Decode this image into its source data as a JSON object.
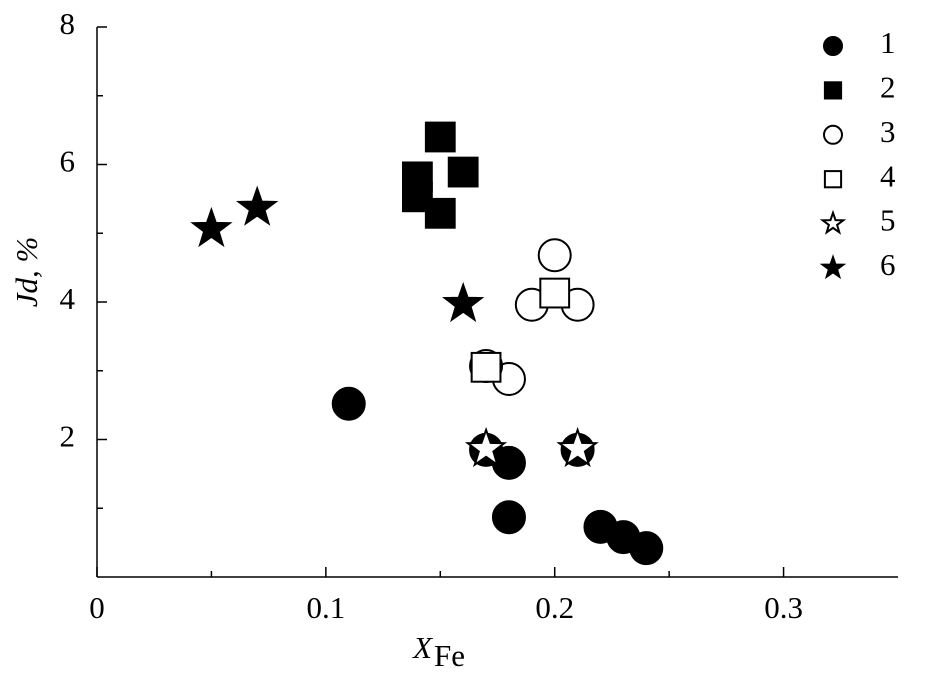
{
  "chart_data": {
    "type": "scatter",
    "xlabel": "X",
    "xlabel_subscript": "Fe",
    "ylabel": "Jd, %",
    "xlim": [
      0,
      0.35
    ],
    "ylim": [
      0,
      8
    ],
    "xticks": [
      0,
      0.1,
      0.2,
      0.3
    ],
    "yticks": [
      2,
      4,
      6,
      8
    ],
    "xminorticks": [
      0.05,
      0.15,
      0.25
    ],
    "yminorticks": [
      1,
      3,
      5,
      7
    ],
    "legend": "top-right",
    "series": [
      {
        "name": "1",
        "color": "#000000",
        "marker": "circle",
        "filled": true,
        "x": [
          0.11,
          0.18,
          0.18,
          0.22,
          0.23,
          0.24,
          0.17,
          0.21
        ],
        "values": [
          2.52,
          1.66,
          0.87,
          0.73,
          0.58,
          0.42,
          1.85,
          1.85
        ]
      },
      {
        "name": "2",
        "color": "#000000",
        "marker": "square",
        "filled": true,
        "x": [
          0.15,
          0.14,
          0.14,
          0.16,
          0.15
        ],
        "values": [
          6.4,
          5.82,
          5.53,
          5.89,
          5.29
        ]
      },
      {
        "name": "3",
        "color": "#000000",
        "marker": "circle",
        "filled": false,
        "x": [
          0.2,
          0.19,
          0.21,
          0.18,
          0.17
        ],
        "values": [
          4.68,
          3.96,
          3.96,
          2.88,
          3.07
        ]
      },
      {
        "name": "4",
        "color": "#000000",
        "marker": "square",
        "filled": false,
        "x": [
          0.2,
          0.17
        ],
        "values": [
          4.13,
          3.05
        ]
      },
      {
        "name": "5",
        "color": "#000000",
        "marker": "star",
        "filled": false,
        "x": [
          0.17,
          0.21
        ],
        "values": [
          1.86,
          1.86
        ]
      },
      {
        "name": "6",
        "color": "#000000",
        "marker": "star",
        "filled": true,
        "x": [
          0.05,
          0.07,
          0.16
        ],
        "values": [
          5.06,
          5.37,
          3.97
        ]
      }
    ]
  }
}
